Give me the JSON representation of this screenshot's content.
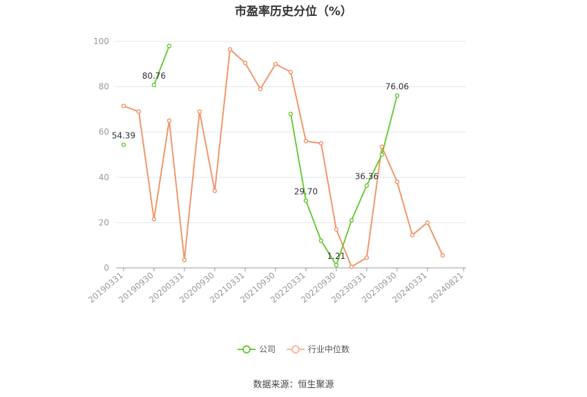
{
  "chart_data": {
    "type": "line",
    "title": "市盈率历史分位（%）",
    "x_ticks": [
      "20190331",
      "20190930",
      "20200331",
      "20200930",
      "20210331",
      "20210930",
      "20220331",
      "20220930",
      "20230331",
      "20230930",
      "20240331",
      "20240821"
    ],
    "x": [
      "20190331",
      "20190630",
      "20190930",
      "20191231",
      "20200331",
      "20200630",
      "20200930",
      "20201231",
      "20210331",
      "20210630",
      "20210930",
      "20211231",
      "20220331",
      "20220630",
      "20220930",
      "20221231",
      "20230331",
      "20230630",
      "20230930",
      "20231231",
      "20240331",
      "20240630"
    ],
    "ylim": [
      0,
      100
    ],
    "yticks": [
      0,
      20,
      40,
      60,
      80,
      100
    ],
    "grid": true,
    "legend_position": "bottom",
    "series": [
      {
        "name": "公司",
        "color": "#6cc93b",
        "values": [
          54.39,
          null,
          80.76,
          98,
          null,
          null,
          null,
          null,
          null,
          null,
          null,
          68,
          29.7,
          12,
          1.21,
          21,
          36.36,
          50,
          76.06,
          null,
          null,
          null
        ],
        "labels": {
          "0": "54.39",
          "2": "80.76",
          "12": "29.70",
          "14": "1.21",
          "16": "36.36",
          "18": "76.06"
        }
      },
      {
        "name": "行业中位数",
        "color": "#f2956a",
        "values": [
          71.5,
          69,
          21.5,
          65,
          3.5,
          69,
          34,
          96.5,
          90.5,
          79,
          90,
          86.5,
          56,
          55,
          17,
          0.5,
          4.5,
          53.5,
          38,
          14.5,
          20,
          5.5
        ]
      }
    ]
  },
  "source_text": "数据来源：恒生聚源"
}
